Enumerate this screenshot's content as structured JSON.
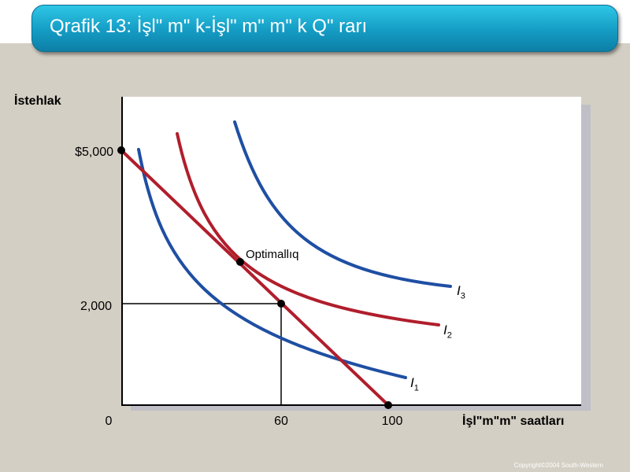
{
  "title": "Qrafik 13: İşl\" m\" k-İşl\" m\" m\" k Q\" rarı",
  "copyright": "Copyright©2004  South-Western",
  "chart_data": {
    "type": "line",
    "ylabel": "İstehlak",
    "xlabel": "İşl\"m\"m\" saatları",
    "x_ticks": [
      "0",
      "60",
      "100"
    ],
    "y_ticks": [
      "$5,000",
      "2,000"
    ],
    "annotation": "Optimallıq",
    "budget_line": {
      "x": [
        0,
        100
      ],
      "y": [
        5000,
        0
      ]
    },
    "optimum": {
      "x": 60,
      "y": 2000
    },
    "colors": {
      "indifference": "#1f4fa3",
      "budget": "#b01e2c",
      "axis": "#000000"
    },
    "series": [
      {
        "name": "I1",
        "label": "I",
        "sub": "1",
        "color": "#1f4fa3"
      },
      {
        "name": "I2",
        "label": "I",
        "sub": "2",
        "color": "#b01e2c"
      },
      {
        "name": "I3",
        "label": "I",
        "sub": "3",
        "color": "#1f4fa3"
      }
    ]
  }
}
